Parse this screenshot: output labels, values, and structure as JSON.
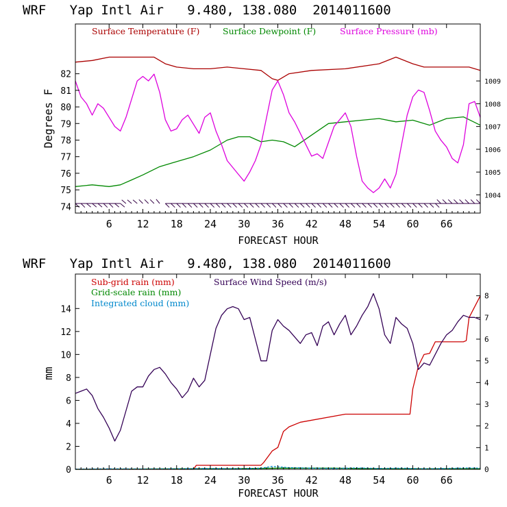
{
  "colors": {
    "temperature": "#aa0000",
    "dewpoint": "#008800",
    "pressure": "#dd00dd",
    "wind_barbs": "#330044",
    "subgrid_rain": "#cc0000",
    "gridscale_rain": "#008800",
    "cloud": "#0088cc",
    "wind_speed": "#330055",
    "frame": "#000000"
  },
  "chart_data": [
    {
      "type": "line",
      "title": "WRF   Yap Intl Air   9.480, 138.080  2014011600",
      "xlabel": "FORECAST HOUR",
      "ylabel": "Degrees F",
      "y2label": "",
      "xlim": [
        0,
        72
      ],
      "ylim": [
        73.6,
        85.0
      ],
      "y2lim": [
        1003.2,
        1011.5
      ],
      "xticks": [
        6,
        12,
        18,
        24,
        30,
        36,
        42,
        48,
        54,
        60,
        66
      ],
      "yticks": [
        74,
        75,
        76,
        77,
        78,
        79,
        80,
        81,
        82
      ],
      "y2ticks": [
        1004,
        1005,
        1006,
        1007,
        1008,
        1009
      ],
      "legend": [
        {
          "label": "Surface Temperature (F)",
          "color_key": "temperature"
        },
        {
          "label": "Surface Dewpoint (F)",
          "color_key": "dewpoint"
        },
        {
          "label": "Surface Pressure (mb)",
          "color_key": "pressure"
        }
      ],
      "series": [
        {
          "name": "Surface Temperature (F)",
          "axis": "left",
          "color_key": "temperature",
          "x": [
            0,
            3,
            6,
            9,
            12,
            14,
            16,
            18,
            21,
            24,
            27,
            30,
            33,
            35,
            36,
            38,
            42,
            48,
            54,
            57,
            60,
            62,
            66,
            70,
            72
          ],
          "values": [
            82.7,
            82.8,
            83.0,
            83.0,
            83.0,
            83.0,
            82.6,
            82.4,
            82.3,
            82.3,
            82.4,
            82.3,
            82.2,
            81.7,
            81.6,
            82.0,
            82.2,
            82.3,
            82.6,
            83.0,
            82.6,
            82.4,
            82.4,
            82.4,
            82.2
          ]
        },
        {
          "name": "Surface Dewpoint (F)",
          "axis": "left",
          "color_key": "dewpoint",
          "x": [
            0,
            3,
            6,
            8,
            10,
            12,
            15,
            18,
            21,
            24,
            27,
            29,
            31,
            33,
            35,
            37,
            39,
            42,
            45,
            48,
            51,
            54,
            57,
            60,
            63,
            66,
            69,
            72
          ],
          "values": [
            75.2,
            75.3,
            75.2,
            75.3,
            75.6,
            75.9,
            76.4,
            76.7,
            77.0,
            77.4,
            78.0,
            78.2,
            78.2,
            77.9,
            78.0,
            77.9,
            77.6,
            78.3,
            79.0,
            79.1,
            79.2,
            79.3,
            79.1,
            79.2,
            78.9,
            79.3,
            79.4,
            78.9
          ]
        },
        {
          "name": "Surface Pressure (mb)",
          "axis": "right",
          "color_key": "pressure",
          "x": [
            0,
            1,
            2,
            3,
            4,
            5,
            6,
            7,
            8,
            9,
            10,
            11,
            12,
            13,
            14,
            15,
            16,
            17,
            18,
            19,
            20,
            21,
            22,
            23,
            24,
            25,
            26,
            27,
            28,
            29,
            30,
            31,
            32,
            33,
            34,
            35,
            36,
            37,
            38,
            39,
            40,
            41,
            42,
            43,
            44,
            45,
            46,
            47,
            48,
            49,
            50,
            51,
            52,
            53,
            54,
            55,
            56,
            57,
            58,
            59,
            60,
            61,
            62,
            63,
            64,
            65,
            66,
            67,
            68,
            69,
            70,
            71,
            72
          ],
          "values": [
            1009.0,
            1008.3,
            1008.0,
            1007.5,
            1008.0,
            1007.8,
            1007.4,
            1007.0,
            1006.8,
            1007.4,
            1008.2,
            1009.0,
            1009.2,
            1009.0,
            1009.3,
            1008.5,
            1007.3,
            1006.8,
            1006.9,
            1007.3,
            1007.5,
            1007.1,
            1006.7,
            1007.4,
            1007.6,
            1006.8,
            1006.2,
            1005.5,
            1005.2,
            1004.9,
            1004.6,
            1005.0,
            1005.5,
            1006.2,
            1007.4,
            1008.6,
            1009.0,
            1008.4,
            1007.6,
            1007.2,
            1006.7,
            1006.2,
            1005.7,
            1005.8,
            1005.6,
            1006.3,
            1007.0,
            1007.3,
            1007.6,
            1007.0,
            1005.7,
            1004.6,
            1004.3,
            1004.1,
            1004.3,
            1004.7,
            1004.3,
            1004.9,
            1006.2,
            1007.5,
            1008.3,
            1008.6,
            1008.5,
            1007.7,
            1006.8,
            1006.4,
            1006.1,
            1005.6,
            1005.4,
            1006.2,
            1008.0,
            1008.1,
            1007.4
          ]
        }
      ],
      "wind_barbs": {
        "x": [
          0,
          1,
          2,
          3,
          4,
          5,
          6,
          7,
          8,
          9,
          10,
          11,
          12,
          13,
          14,
          15,
          16,
          17,
          18,
          19,
          20,
          21,
          22,
          23,
          24,
          25,
          26,
          27,
          28,
          29,
          30,
          31,
          32,
          33,
          34,
          35,
          36,
          37,
          38,
          39,
          40,
          41,
          42,
          43,
          44,
          45,
          46,
          47,
          48,
          49,
          50,
          51,
          52,
          53,
          54,
          55,
          56,
          57,
          58,
          59,
          60,
          61,
          62,
          63,
          64,
          65,
          66,
          67,
          68,
          69,
          70,
          71,
          72
        ],
        "direction_deg": [
          45,
          45,
          40,
          40,
          40,
          45,
          45,
          40,
          40,
          220,
          220,
          220,
          225,
          225,
          225,
          230,
          45,
          45,
          45,
          45,
          45,
          45,
          45,
          45,
          45,
          45,
          45,
          45,
          45,
          45,
          45,
          45,
          45,
          45,
          45,
          45,
          45,
          45,
          45,
          45,
          45,
          45,
          45,
          45,
          45,
          45,
          45,
          45,
          45,
          45,
          45,
          45,
          45,
          45,
          45,
          45,
          45,
          45,
          45,
          45,
          45,
          45,
          45,
          45,
          45,
          225,
          225,
          225,
          225,
          225,
          225,
          225,
          225
        ]
      }
    },
    {
      "type": "line",
      "title": "WRF   Yap Intl Air   9.480, 138.080  2014011600",
      "xlabel": "FORECAST HOUR",
      "ylabel": "mm",
      "xlim": [
        0,
        72
      ],
      "ylim": [
        0,
        17
      ],
      "y2lim": [
        0,
        9
      ],
      "xticks": [
        6,
        12,
        18,
        24,
        30,
        36,
        42,
        48,
        54,
        60,
        66
      ],
      "yticks": [
        0,
        2,
        4,
        6,
        8,
        10,
        12,
        14
      ],
      "y2ticks": [
        0,
        1,
        2,
        3,
        4,
        5,
        6,
        7,
        8
      ],
      "legend": [
        {
          "label": "Sub-grid rain (mm)",
          "color_key": "subgrid_rain"
        },
        {
          "label": "Surface Wind Speed (m/s)",
          "color_key": "wind_speed"
        },
        {
          "label": "Grid-scale rain (mm)",
          "color_key": "gridscale_rain"
        },
        {
          "label": "Integrated cloud (mm)",
          "color_key": "cloud"
        }
      ],
      "series": [
        {
          "name": "Sub-grid rain (mm)",
          "axis": "left",
          "color_key": "subgrid_rain",
          "x": [
            0,
            21,
            21.5,
            33,
            33.5,
            35,
            36,
            37,
            38,
            40,
            48,
            59,
            59.5,
            60,
            61,
            62,
            63,
            64,
            69,
            69.5,
            70,
            72
          ],
          "values": [
            0,
            0,
            0.35,
            0.35,
            0.6,
            1.6,
            1.9,
            3.3,
            3.7,
            4.1,
            4.8,
            4.8,
            4.8,
            7.0,
            9.0,
            10.0,
            10.1,
            11.1,
            11.1,
            11.2,
            13.2,
            15.1
          ],
          "step": true
        },
        {
          "name": "Grid-scale rain (mm)",
          "axis": "left",
          "color_key": "gridscale_rain",
          "x": [
            0,
            10,
            18,
            27,
            36,
            46,
            54,
            63,
            72
          ],
          "values": [
            0,
            0.02,
            0.05,
            0.05,
            0.1,
            0.1,
            0.05,
            0.05,
            0.05
          ]
        },
        {
          "name": "Integrated cloud (mm)",
          "axis": "left",
          "color_key": "cloud",
          "x": [
            0,
            6,
            12,
            18,
            24,
            30,
            33,
            35,
            38,
            42,
            46,
            50,
            54,
            58,
            62,
            66,
            70,
            72
          ],
          "values": [
            0.02,
            0.05,
            0.03,
            0.05,
            0.08,
            0.05,
            0.1,
            0.25,
            0.15,
            0.1,
            0.08,
            0.12,
            0.08,
            0.1,
            0.05,
            0.08,
            0.12,
            0.1
          ],
          "dashed": true
        },
        {
          "name": "Surface Wind Speed (m/s)",
          "axis": "right",
          "color_key": "wind_speed",
          "x": [
            0,
            1,
            2,
            3,
            4,
            5,
            6,
            7,
            8,
            9,
            10,
            11,
            12,
            13,
            14,
            15,
            16,
            17,
            18,
            19,
            20,
            21,
            22,
            23,
            24,
            25,
            26,
            27,
            28,
            29,
            30,
            31,
            32,
            33,
            34,
            35,
            36,
            37,
            38,
            39,
            40,
            41,
            42,
            43,
            44,
            45,
            46,
            47,
            48,
            49,
            50,
            51,
            52,
            53,
            54,
            55,
            56,
            57,
            58,
            59,
            60,
            61,
            62,
            63,
            64,
            65,
            66,
            67,
            68,
            69,
            70,
            71,
            72
          ],
          "values": [
            3.5,
            3.6,
            3.7,
            3.4,
            2.8,
            2.4,
            1.9,
            1.3,
            1.8,
            2.7,
            3.6,
            3.8,
            3.8,
            4.3,
            4.6,
            4.7,
            4.4,
            4.0,
            3.7,
            3.3,
            3.6,
            4.2,
            3.8,
            4.1,
            5.3,
            6.5,
            7.1,
            7.4,
            7.5,
            7.4,
            6.9,
            7.0,
            6.0,
            5.0,
            5.0,
            6.4,
            6.9,
            6.6,
            6.4,
            6.1,
            5.8,
            6.2,
            6.3,
            5.7,
            6.6,
            6.8,
            6.2,
            6.7,
            7.1,
            6.2,
            6.6,
            7.1,
            7.5,
            8.1,
            7.4,
            6.2,
            5.8,
            7.0,
            6.7,
            6.5,
            5.8,
            4.6,
            4.9,
            4.8,
            5.3,
            5.8,
            6.2,
            6.4,
            6.8,
            7.1,
            7.0,
            7.0,
            6.9
          ]
        }
      ]
    }
  ]
}
